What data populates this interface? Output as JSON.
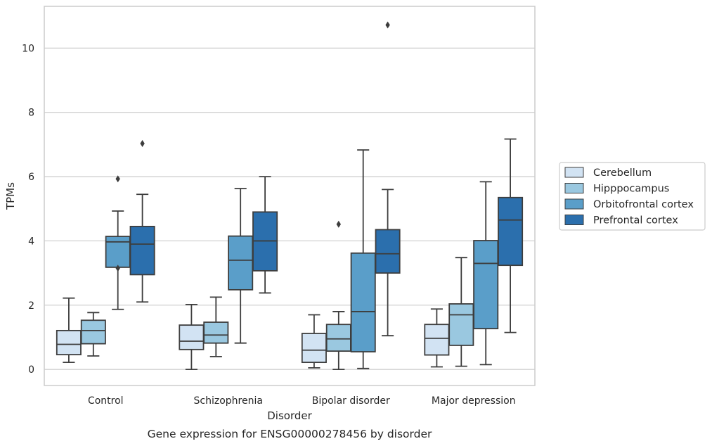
{
  "chart_data": {
    "type": "box",
    "title": "",
    "caption": "Gene expression for ENSG00000278456 by disorder",
    "xlabel": "Disorder",
    "ylabel": "TPMs",
    "ylim": [
      -0.5,
      11.3
    ],
    "yticks": [
      0,
      2,
      4,
      6,
      8,
      10
    ],
    "grid": "horizontal",
    "legend_position": "right",
    "categories": [
      "Control",
      "Schizophrenia",
      "Bipolar disorder",
      "Major depression"
    ],
    "series": [
      {
        "name": "Cerebellum",
        "color": "#d2e3f3",
        "boxes": [
          {
            "whislo": 0.22,
            "q1": 0.46,
            "med": 0.78,
            "q3": 1.21,
            "whishi": 2.22,
            "fliers": []
          },
          {
            "whislo": 0.0,
            "q1": 0.62,
            "med": 0.88,
            "q3": 1.38,
            "whishi": 2.02,
            "fliers": []
          },
          {
            "whislo": 0.05,
            "q1": 0.22,
            "med": 0.6,
            "q3": 1.12,
            "whishi": 1.7,
            "fliers": []
          },
          {
            "whislo": 0.08,
            "q1": 0.45,
            "med": 0.97,
            "q3": 1.4,
            "whishi": 1.88,
            "fliers": []
          }
        ]
      },
      {
        "name": "Hipppocampus",
        "color": "#9ac8e0",
        "boxes": [
          {
            "whislo": 0.42,
            "q1": 0.8,
            "med": 1.21,
            "q3": 1.53,
            "whishi": 1.77,
            "fliers": []
          },
          {
            "whislo": 0.4,
            "q1": 0.82,
            "med": 1.07,
            "q3": 1.47,
            "whishi": 2.25,
            "fliers": []
          },
          {
            "whislo": 0.0,
            "q1": 0.57,
            "med": 0.95,
            "q3": 1.4,
            "whishi": 1.8,
            "fliers": [
              4.52
            ]
          },
          {
            "whislo": 0.1,
            "q1": 0.75,
            "med": 1.7,
            "q3": 2.04,
            "whishi": 3.48,
            "fliers": []
          }
        ]
      },
      {
        "name": "Orbitofrontal cortex",
        "color": "#5a9ec9",
        "boxes": [
          {
            "whislo": 1.87,
            "q1": 3.18,
            "med": 3.97,
            "q3": 4.14,
            "whishi": 4.93,
            "fliers": [
              3.15,
              5.93
            ]
          },
          {
            "whislo": 0.82,
            "q1": 2.48,
            "med": 3.4,
            "q3": 4.15,
            "whishi": 5.63,
            "fliers": []
          },
          {
            "whislo": 0.03,
            "q1": 0.55,
            "med": 1.8,
            "q3": 3.62,
            "whishi": 6.83,
            "fliers": []
          },
          {
            "whislo": 0.15,
            "q1": 1.27,
            "med": 3.3,
            "q3": 4.01,
            "whishi": 5.84,
            "fliers": []
          }
        ]
      },
      {
        "name": "Prefrontal cortex",
        "color": "#2b6fad",
        "boxes": [
          {
            "whislo": 2.1,
            "q1": 2.95,
            "med": 3.9,
            "q3": 4.45,
            "whishi": 5.45,
            "fliers": [
              7.03
            ]
          },
          {
            "whislo": 2.38,
            "q1": 3.07,
            "med": 4.0,
            "q3": 4.9,
            "whishi": 6.0,
            "fliers": []
          },
          {
            "whislo": 1.05,
            "q1": 3.0,
            "med": 3.6,
            "q3": 4.35,
            "whishi": 5.6,
            "fliers": [
              10.72
            ]
          },
          {
            "whislo": 1.15,
            "q1": 3.24,
            "med": 4.65,
            "q3": 5.35,
            "whishi": 7.17,
            "fliers": []
          }
        ]
      }
    ]
  },
  "colors": {
    "grid": "#cccccc",
    "spine": "#cccccc",
    "line": "#3d3d3d",
    "text": "#262626"
  }
}
